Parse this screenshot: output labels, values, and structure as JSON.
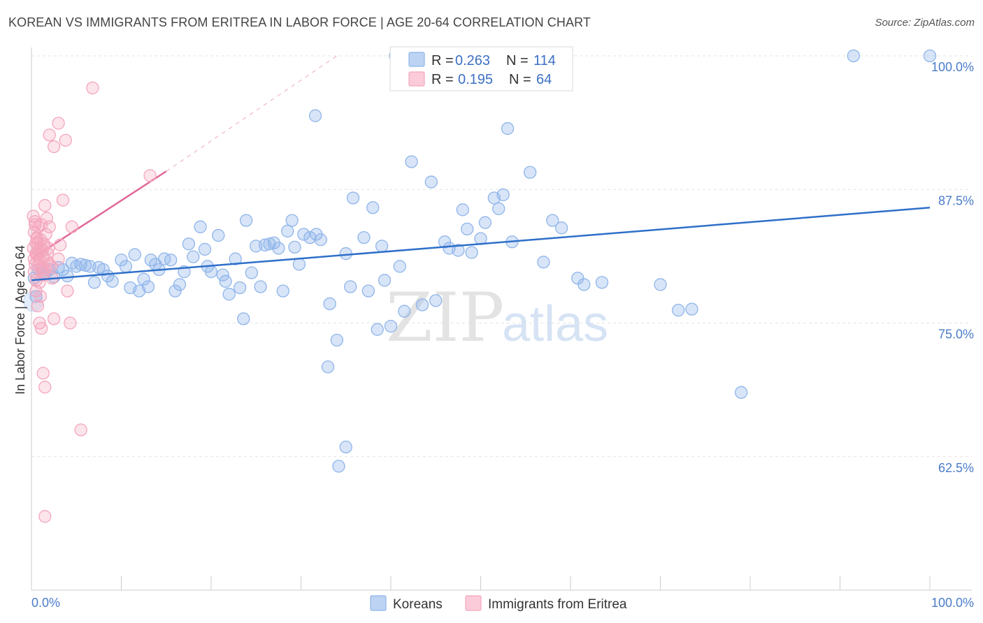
{
  "title": "KOREAN VS IMMIGRANTS FROM ERITREA IN LABOR FORCE | AGE 20-64 CORRELATION CHART",
  "source": "Source: ZipAtlas.com",
  "watermark": {
    "zip": "ZIP",
    "atlas": "atlas"
  },
  "legend": {
    "r_label": "R =",
    "n_label": "N =",
    "series": [
      {
        "r": "0.263",
        "n": "114"
      },
      {
        "r": "0.195",
        "n": "64"
      }
    ]
  },
  "bottom_legend": [
    "Koreans",
    "Immigrants from Eritrea"
  ],
  "chart_data": {
    "type": "scatter",
    "title": "KOREAN VS IMMIGRANTS FROM ERITREA IN LABOR FORCE | AGE 20-64 CORRELATION CHART",
    "ylabel": "In Labor Force | Age 20-64",
    "xlabel": "",
    "xlim": [
      0,
      100
    ],
    "ylim": [
      50,
      100
    ],
    "x_tick_labels": [
      {
        "value": 0,
        "label": "0.0%"
      },
      {
        "value": 100,
        "label": "100.0%"
      }
    ],
    "y_tick_labels": [
      {
        "value": 100,
        "label": "100.0%"
      },
      {
        "value": 87.5,
        "label": "87.5%"
      },
      {
        "value": 75,
        "label": "75.0%"
      },
      {
        "value": 62.5,
        "label": "62.5%"
      }
    ],
    "grid": true,
    "legend_placement": "top-center",
    "colors": {
      "koreans": "#8fb5ea",
      "koreans_line": "#2e6fc9",
      "eritrea": "#f4a6bd",
      "eritrea_line": "#e0689a"
    },
    "series": [
      {
        "name": "Koreans",
        "r": 0.263,
        "n": 114,
        "trend": {
          "x": [
            0,
            100
          ],
          "y": [
            79.0,
            85.8
          ]
        },
        "points": [
          [
            0.3,
            79.2
          ],
          [
            0.5,
            77.5
          ],
          [
            0.8,
            80.0
          ],
          [
            1.2,
            79.8
          ],
          [
            1.5,
            79.6
          ],
          [
            2.0,
            80.0
          ],
          [
            2.5,
            79.3
          ],
          [
            3.0,
            80.2
          ],
          [
            3.5,
            80.0
          ],
          [
            4.0,
            79.4
          ],
          [
            4.5,
            80.6
          ],
          [
            5.0,
            80.3
          ],
          [
            5.5,
            80.5
          ],
          [
            6.0,
            80.4
          ],
          [
            6.5,
            80.3
          ],
          [
            7.0,
            78.8
          ],
          [
            7.5,
            80.2
          ],
          [
            8.0,
            80.0
          ],
          [
            8.5,
            79.4
          ],
          [
            9.0,
            78.9
          ],
          [
            10.0,
            80.9
          ],
          [
            10.5,
            80.3
          ],
          [
            11.0,
            78.3
          ],
          [
            11.5,
            81.4
          ],
          [
            12.0,
            78.0
          ],
          [
            12.5,
            79.1
          ],
          [
            13.0,
            78.4
          ],
          [
            13.3,
            80.9
          ],
          [
            13.8,
            80.5
          ],
          [
            14.2,
            80.0
          ],
          [
            14.8,
            81.0
          ],
          [
            15.5,
            80.9
          ],
          [
            16.0,
            78.0
          ],
          [
            16.5,
            78.6
          ],
          [
            17.0,
            79.8
          ],
          [
            17.5,
            82.4
          ],
          [
            18.0,
            81.2
          ],
          [
            18.8,
            84.0
          ],
          [
            19.3,
            81.9
          ],
          [
            19.6,
            80.3
          ],
          [
            20.0,
            79.8
          ],
          [
            20.8,
            83.2
          ],
          [
            21.3,
            79.5
          ],
          [
            21.6,
            78.9
          ],
          [
            22.0,
            77.7
          ],
          [
            22.7,
            81.0
          ],
          [
            23.2,
            78.3
          ],
          [
            23.6,
            75.4
          ],
          [
            23.9,
            84.6
          ],
          [
            24.5,
            79.7
          ],
          [
            25.0,
            82.2
          ],
          [
            25.5,
            78.4
          ],
          [
            26.0,
            82.3
          ],
          [
            26.5,
            82.4
          ],
          [
            27.0,
            82.5
          ],
          [
            27.5,
            82.0
          ],
          [
            28.0,
            78.0
          ],
          [
            28.5,
            83.6
          ],
          [
            29.0,
            84.6
          ],
          [
            29.3,
            82.1
          ],
          [
            29.8,
            80.5
          ],
          [
            30.3,
            83.3
          ],
          [
            31.0,
            83.0
          ],
          [
            31.7,
            83.3
          ],
          [
            32.2,
            82.8
          ],
          [
            31.6,
            94.4
          ],
          [
            33.2,
            76.8
          ],
          [
            34.0,
            73.4
          ],
          [
            33.0,
            70.9
          ],
          [
            35.0,
            81.5
          ],
          [
            35.5,
            78.4
          ],
          [
            35.8,
            86.7
          ],
          [
            37.0,
            83.0
          ],
          [
            37.5,
            78.0
          ],
          [
            38.0,
            85.8
          ],
          [
            38.5,
            74.4
          ],
          [
            39.0,
            82.2
          ],
          [
            39.3,
            79.0
          ],
          [
            40.0,
            74.7
          ],
          [
            41.0,
            80.3
          ],
          [
            41.5,
            76.1
          ],
          [
            42.3,
            90.1
          ],
          [
            43.5,
            76.7
          ],
          [
            44.5,
            88.2
          ],
          [
            45.0,
            77.1
          ],
          [
            46.0,
            82.6
          ],
          [
            46.5,
            82.0
          ],
          [
            47.5,
            81.8
          ],
          [
            48.0,
            85.6
          ],
          [
            48.5,
            83.8
          ],
          [
            49.0,
            81.6
          ],
          [
            50.0,
            82.9
          ],
          [
            50.5,
            84.4
          ],
          [
            51.5,
            86.7
          ],
          [
            52.0,
            85.7
          ],
          [
            52.5,
            87.0
          ],
          [
            53.0,
            93.2
          ],
          [
            53.5,
            82.6
          ],
          [
            55.5,
            89.1
          ],
          [
            57.0,
            80.7
          ],
          [
            58.0,
            84.6
          ],
          [
            59.0,
            83.9
          ],
          [
            60.8,
            79.2
          ],
          [
            61.5,
            78.6
          ],
          [
            63.5,
            78.8
          ],
          [
            70.0,
            78.6
          ],
          [
            72.0,
            76.2
          ],
          [
            73.5,
            76.3
          ],
          [
            79.0,
            68.5
          ],
          [
            91.5,
            100.0
          ],
          [
            100.0,
            100.0
          ],
          [
            40.5,
            100.0
          ],
          [
            34.2,
            61.6
          ],
          [
            35.0,
            63.4
          ]
        ]
      },
      {
        "name": "Immigrants from Eritrea",
        "r": 0.195,
        "n": 64,
        "trend": {
          "x": [
            0,
            15
          ],
          "y": [
            81.0,
            89.2
          ]
        },
        "trend_extension": {
          "x": [
            15,
            34
          ],
          "y": [
            89.2,
            100
          ]
        },
        "points": [
          [
            0.2,
            82.0
          ],
          [
            0.3,
            81.0
          ],
          [
            0.4,
            80.5
          ],
          [
            0.5,
            81.5
          ],
          [
            0.6,
            83.0
          ],
          [
            0.7,
            82.5
          ],
          [
            0.8,
            84.0
          ],
          [
            0.9,
            81.0
          ],
          [
            1.0,
            82.0
          ],
          [
            1.1,
            80.0
          ],
          [
            0.2,
            85.0
          ],
          [
            0.4,
            84.5
          ],
          [
            0.5,
            79.0
          ],
          [
            0.6,
            81.5
          ],
          [
            0.8,
            80.5
          ],
          [
            1.0,
            82.8
          ],
          [
            1.2,
            81.8
          ],
          [
            1.3,
            79.5
          ],
          [
            1.4,
            82.2
          ],
          [
            1.5,
            86.0
          ],
          [
            0.3,
            83.5
          ],
          [
            0.5,
            82.5
          ],
          [
            0.7,
            81.3
          ],
          [
            0.9,
            78.8
          ],
          [
            1.1,
            84.2
          ],
          [
            1.3,
            81.2
          ],
          [
            1.5,
            80.0
          ],
          [
            1.7,
            80.8
          ],
          [
            1.9,
            82.0
          ],
          [
            2.0,
            80.5
          ],
          [
            0.4,
            84.2
          ],
          [
            0.6,
            82.9
          ],
          [
            0.8,
            81.7
          ],
          [
            1.0,
            77.5
          ],
          [
            1.2,
            80.2
          ],
          [
            1.4,
            82.4
          ],
          [
            1.6,
            83.3
          ],
          [
            1.8,
            81.5
          ],
          [
            2.0,
            84.0
          ],
          [
            2.2,
            80.3
          ],
          [
            0.3,
            79.8
          ],
          [
            0.5,
            78.0
          ],
          [
            0.7,
            76.6
          ],
          [
            0.9,
            75.0
          ],
          [
            1.1,
            74.5
          ],
          [
            1.3,
            70.3
          ],
          [
            1.5,
            69.0
          ],
          [
            2.5,
            75.4
          ],
          [
            4.3,
            75.0
          ],
          [
            3.0,
            81.0
          ],
          [
            3.2,
            82.3
          ],
          [
            3.5,
            86.5
          ],
          [
            4.0,
            78.0
          ],
          [
            4.5,
            84.0
          ],
          [
            5.5,
            65.0
          ],
          [
            1.5,
            56.9
          ],
          [
            2.0,
            92.6
          ],
          [
            2.5,
            91.5
          ],
          [
            3.0,
            93.7
          ],
          [
            3.8,
            92.1
          ],
          [
            6.8,
            97.0
          ],
          [
            13.2,
            88.8
          ],
          [
            1.7,
            84.8
          ],
          [
            2.3,
            79.2
          ]
        ]
      }
    ]
  }
}
